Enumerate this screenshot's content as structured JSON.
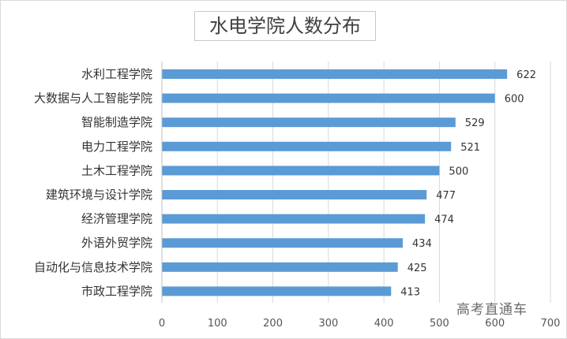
{
  "chart_data": {
    "type": "bar",
    "orientation": "horizontal",
    "title": "水电学院人数分布",
    "categories": [
      "水利工程学院",
      "大数据与人工智能学院",
      "智能制造学院",
      "电力工程学院",
      "土木工程学院",
      "建筑环境与设计学院",
      "经济管理学院",
      "外语外贸学院",
      "自动化与信息技术学院",
      "市政工程学院"
    ],
    "values": [
      622,
      600,
      529,
      521,
      500,
      477,
      474,
      434,
      425,
      413
    ],
    "xlim": [
      0,
      700
    ],
    "xticks": [
      0,
      100,
      200,
      300,
      400,
      500,
      600,
      700
    ],
    "grid": true,
    "bar_color": "#5b9bd5",
    "data_labels": true
  },
  "watermark": "高考直通车"
}
